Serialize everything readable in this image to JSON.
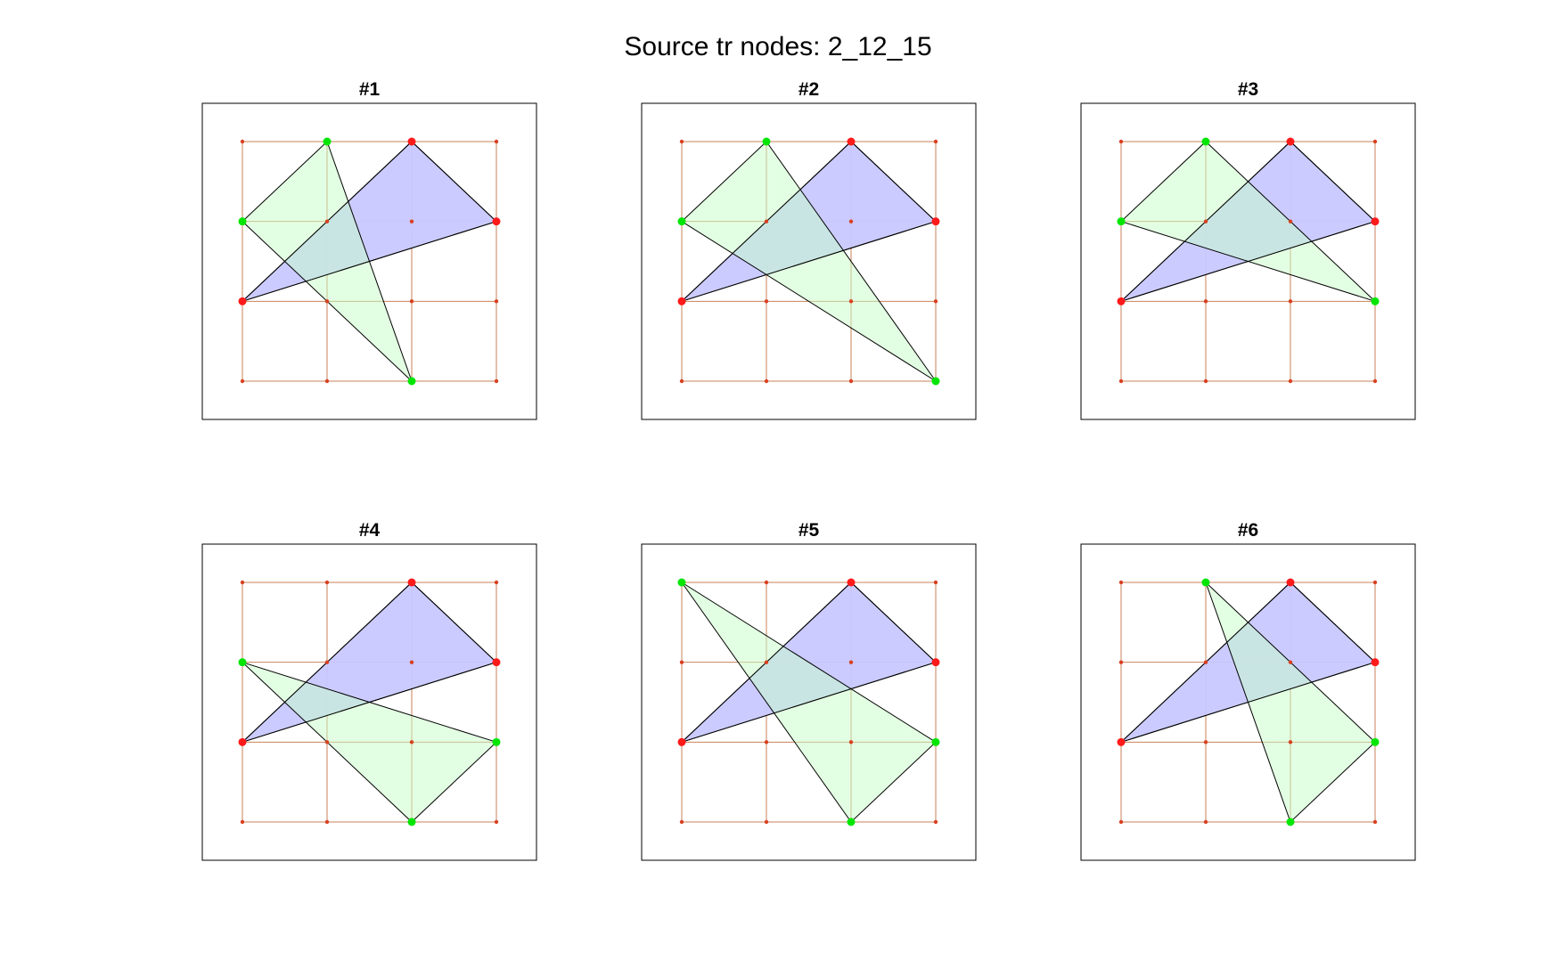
{
  "figure": {
    "title": "Source tr nodes: 2_12_15"
  },
  "colors": {
    "grid_line": "#c8825a",
    "grid_node": "#d94020",
    "source_fill": "#c8c8ff",
    "source_node": "#ff1a1a",
    "target_fill": "#c8ffc8",
    "target_node": "#00e600",
    "edge": "#000000",
    "axes_border": "#000000"
  },
  "grid": {
    "cols": 4,
    "rows": 4,
    "x_range": [
      0,
      3
    ],
    "y_range": [
      0,
      3
    ]
  },
  "source_triangle": [
    [
      0,
      1
    ],
    [
      2,
      3
    ],
    [
      3,
      2
    ]
  ],
  "panels": [
    {
      "title": "#1",
      "target_triangle": [
        [
          0,
          2
        ],
        [
          1,
          3
        ],
        [
          2,
          0
        ]
      ]
    },
    {
      "title": "#2",
      "target_triangle": [
        [
          0,
          2
        ],
        [
          1,
          3
        ],
        [
          3,
          0
        ]
      ]
    },
    {
      "title": "#3",
      "target_triangle": [
        [
          0,
          2
        ],
        [
          1,
          3
        ],
        [
          3,
          1
        ]
      ]
    },
    {
      "title": "#4",
      "target_triangle": [
        [
          0,
          2
        ],
        [
          2,
          0
        ],
        [
          3,
          1
        ]
      ]
    },
    {
      "title": "#5",
      "target_triangle": [
        [
          0,
          3
        ],
        [
          2,
          0
        ],
        [
          3,
          1
        ]
      ]
    },
    {
      "title": "#6",
      "target_triangle": [
        [
          1,
          3
        ],
        [
          2,
          0
        ],
        [
          3,
          1
        ]
      ]
    }
  ]
}
